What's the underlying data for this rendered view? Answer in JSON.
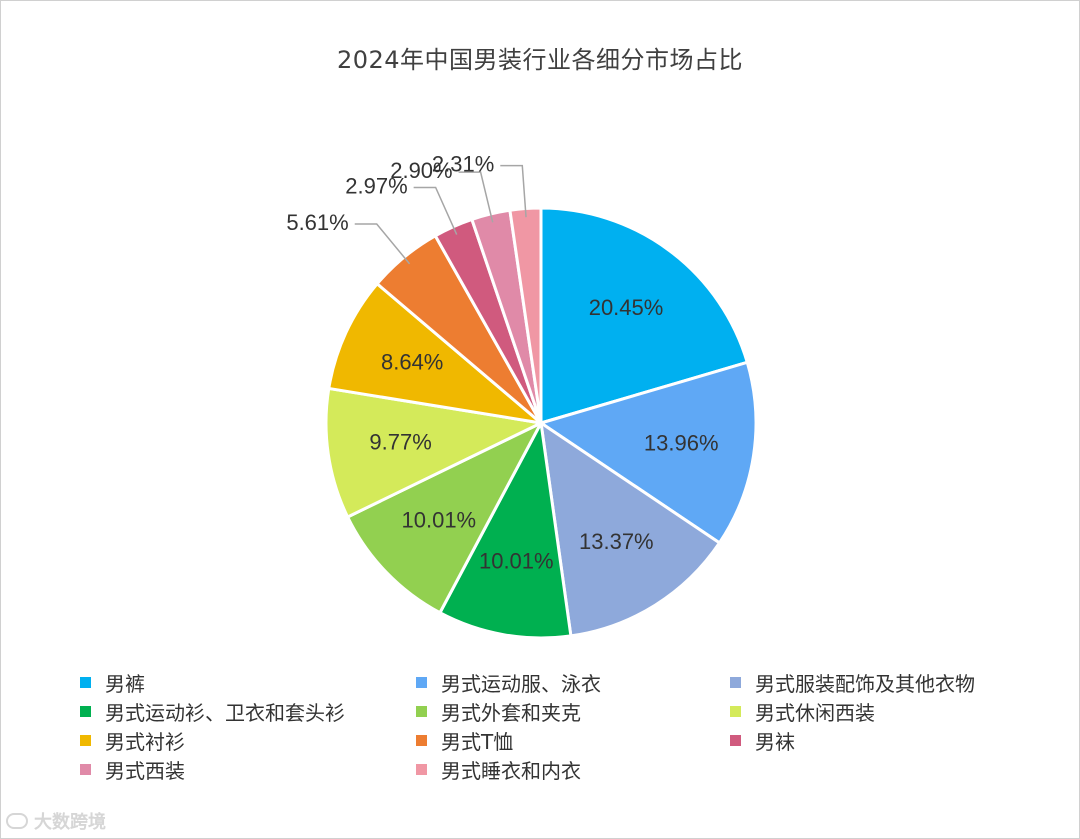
{
  "chart_data": {
    "type": "pie",
    "title": "2024年中国男装行业各细分市场占比",
    "categories": [
      "男裤",
      "男式运动服、泳衣",
      "男式服装配饰及其他衣物",
      "男式运动衫、卫衣和套头衫",
      "男式外套和夹克",
      "男式休闲西装",
      "男式衬衫",
      "男式T恤",
      "男袜",
      "男式西装",
      "男式睡衣和内衣"
    ],
    "values": [
      20.45,
      13.96,
      13.37,
      10.01,
      10.01,
      9.77,
      8.64,
      5.61,
      2.97,
      2.9,
      2.31
    ],
    "labels": [
      "20.45%",
      "13.96%",
      "13.37%",
      "10.01%",
      "10.01%",
      "9.77%",
      "8.64%",
      "5.61%",
      "2.97%",
      "2.90%",
      "2.31%"
    ],
    "colors": [
      "#00B0F0",
      "#5FA8F5",
      "#8EA9DB",
      "#00B050",
      "#92D050",
      "#D4EA5A",
      "#F0B800",
      "#ED7D31",
      "#D05A7E",
      "#E08AA8",
      "#F097A4"
    ],
    "legend_position": "bottom"
  },
  "watermark": {
    "text": "大数跨境",
    "icon": "logo-icon"
  }
}
